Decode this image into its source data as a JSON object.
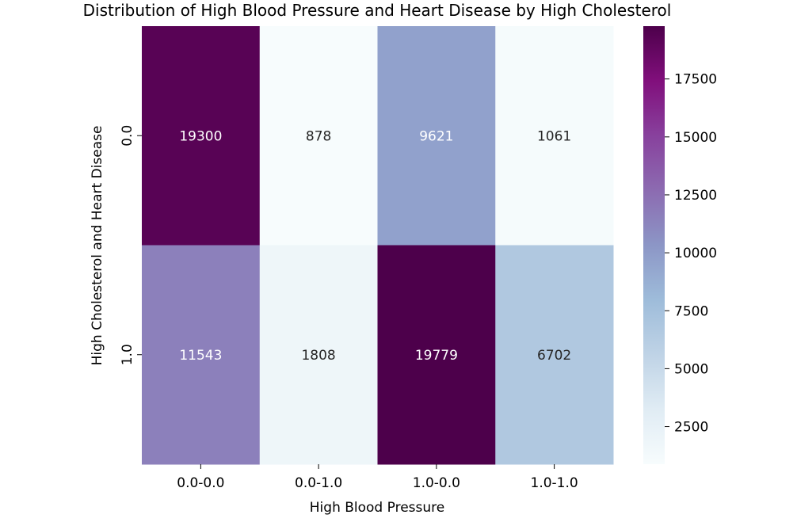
{
  "chart_data": {
    "type": "heatmap",
    "title": "Distribution of High Blood Pressure and Heart Disease by High Cholesterol",
    "xlabel": "High Blood Pressure",
    "ylabel": "High Cholesterol and Heart Disease",
    "x_categories": [
      "0.0-0.0",
      "0.0-1.0",
      "1.0-0.0",
      "1.0-1.0"
    ],
    "y_categories": [
      "0.0",
      "1.0"
    ],
    "values": [
      [
        19300,
        878,
        9621,
        1061
      ],
      [
        11543,
        1808,
        19779,
        6702
      ]
    ],
    "colormap": "BuPu",
    "color_range": [
      878,
      19779
    ],
    "colorbar_ticks": [
      2500,
      5000,
      7500,
      10000,
      12500,
      15000,
      17500
    ],
    "colorbar_tick_labels": [
      "2500",
      "5000",
      "7500",
      "10000",
      "12500",
      "15000",
      "17500"
    ],
    "annotation_light_color": "#ffffff",
    "annotation_dark_color": "#262626"
  }
}
